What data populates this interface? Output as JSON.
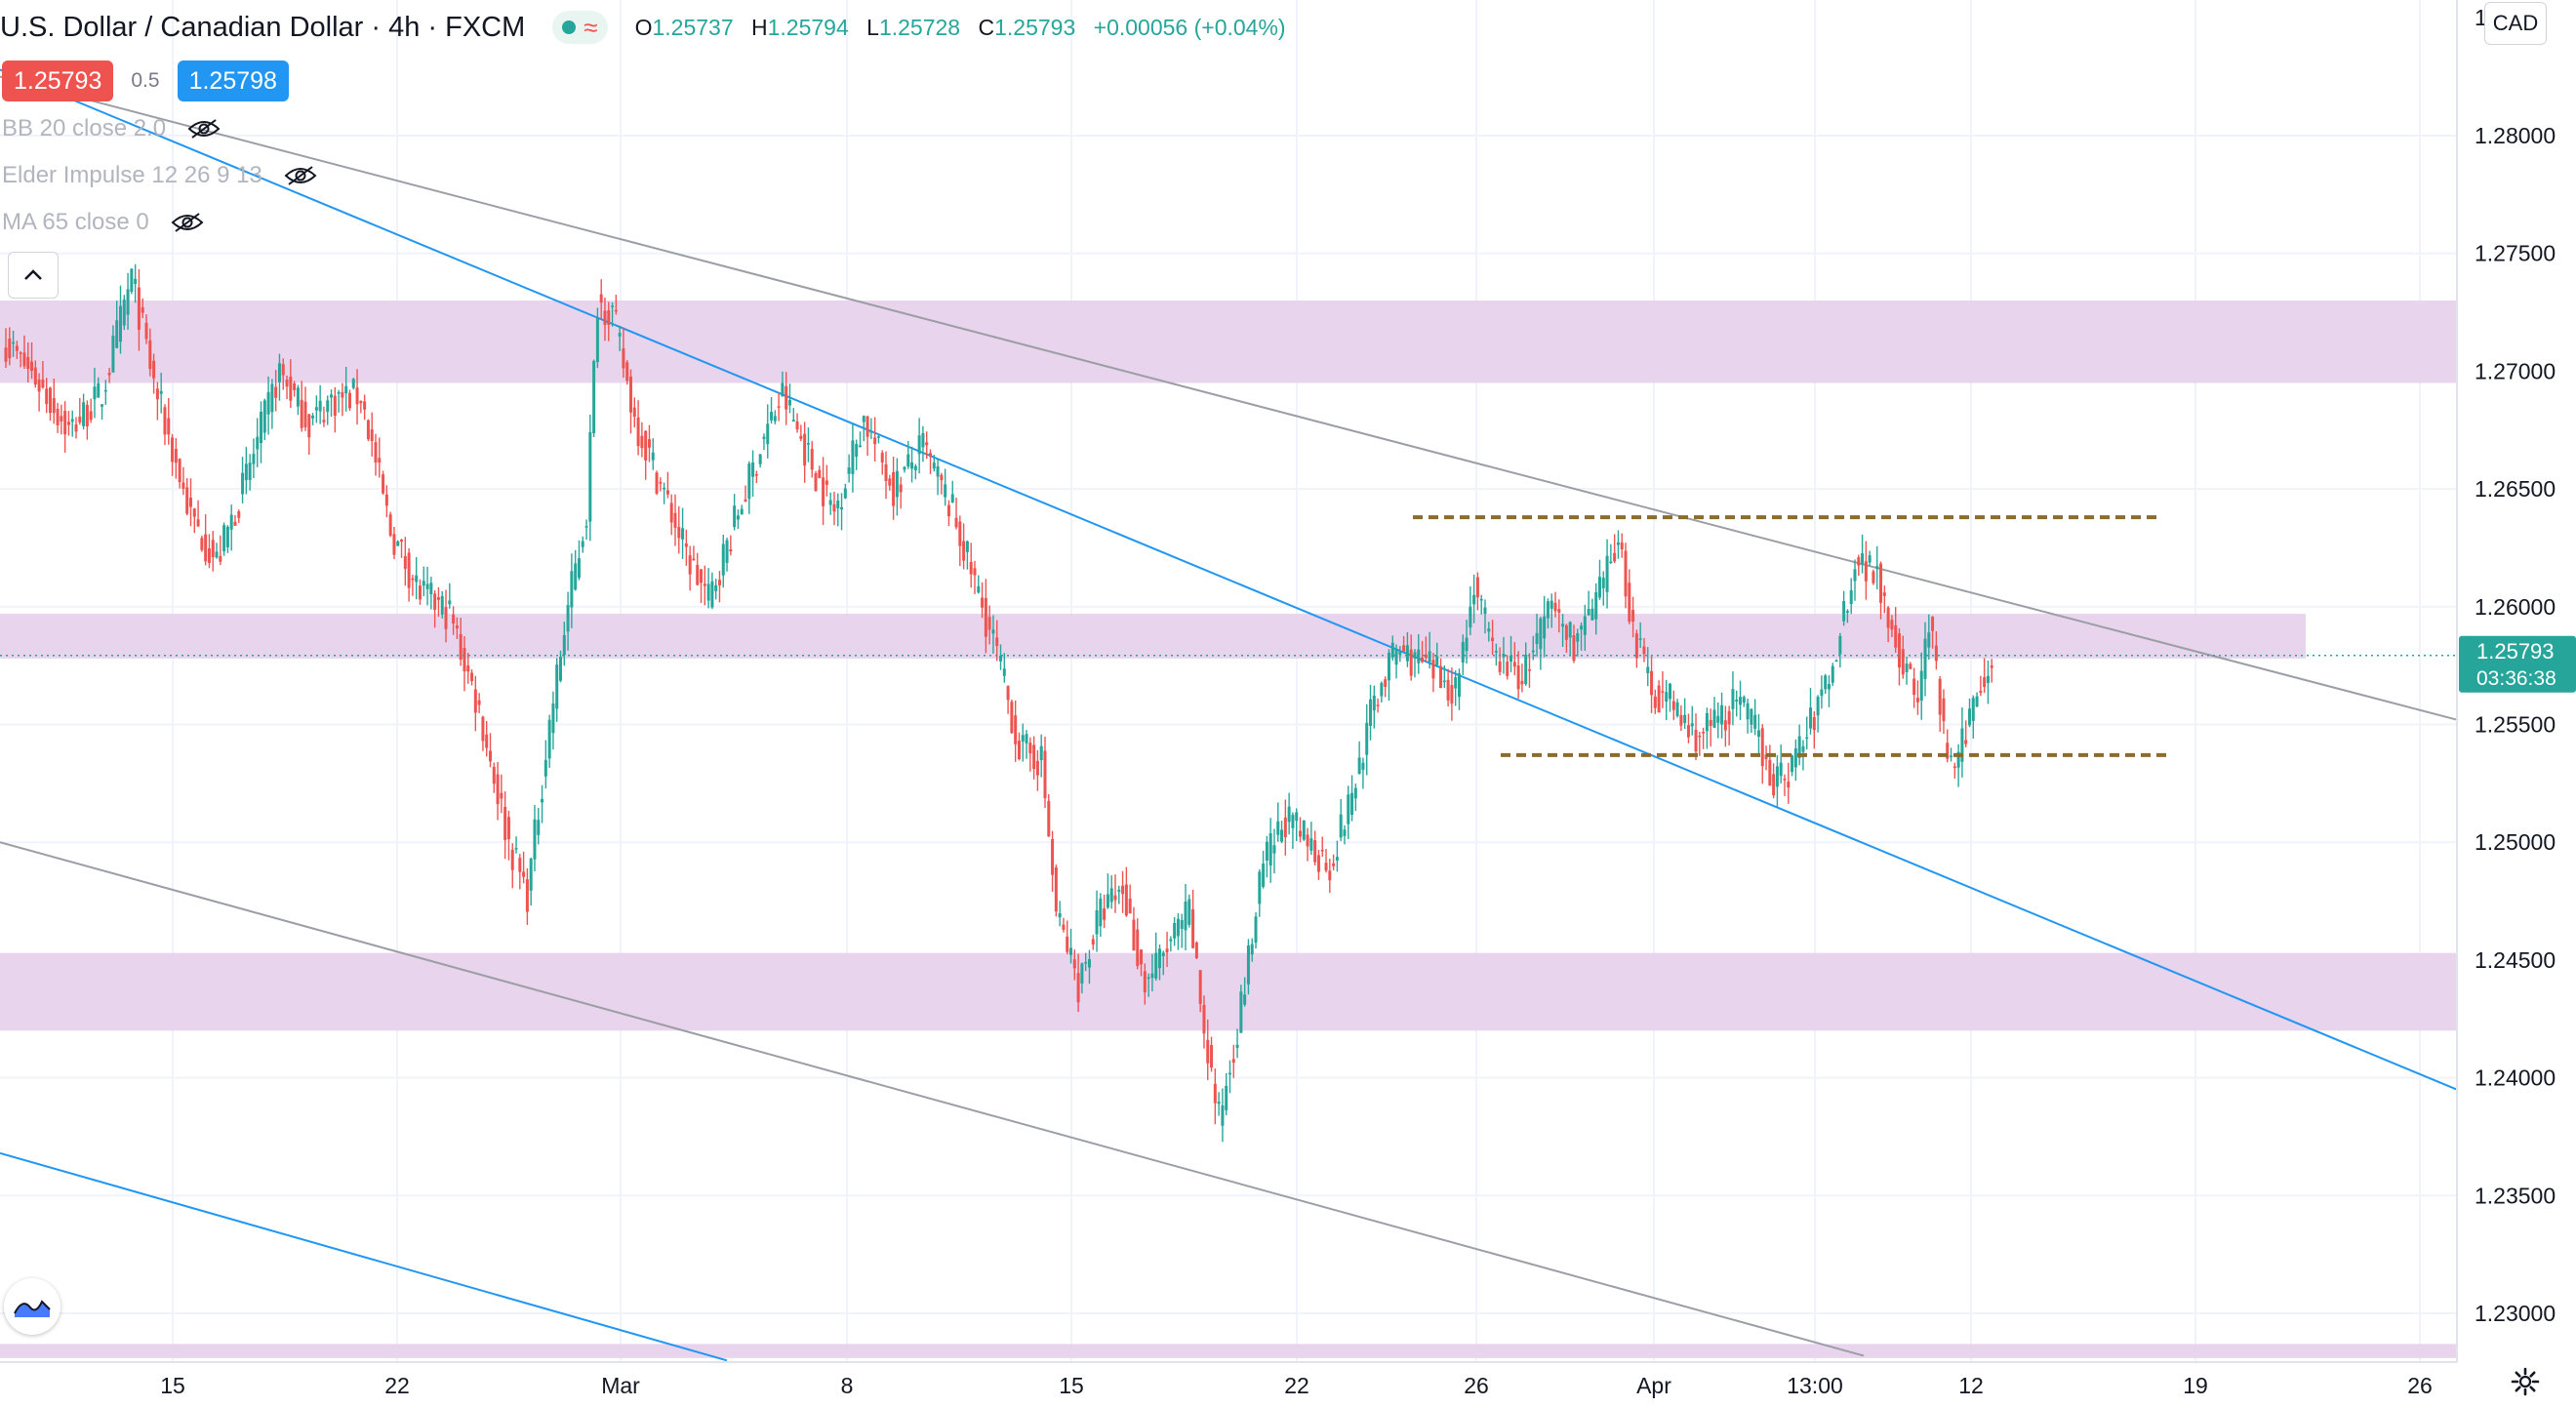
{
  "header": {
    "symbol": "U.S. Dollar / Canadian Dollar · 4h · FXCM",
    "ohlc": [
      {
        "k": "O",
        "v": "1.25737"
      },
      {
        "k": "H",
        "v": "1.25794"
      },
      {
        "k": "L",
        "v": "1.25728"
      },
      {
        "k": "C",
        "v": "1.25793"
      },
      {
        "k": "",
        "v": "+0.00056 (+0.04%)"
      }
    ]
  },
  "trade": {
    "sell": "1.25793",
    "spread": "0.5",
    "buy": "1.25798"
  },
  "indicators": [
    "BB 20 close 2.0",
    "Elder Impulse 12 26 9 13",
    "MA 65 close 0"
  ],
  "currency_button": "CAD",
  "icons": [
    "eye-hidden-icon",
    "chevron-up-icon",
    "tradingview-logo-icon",
    "gear-icon",
    "wave-icon"
  ],
  "colors": {
    "up": "#26a69a",
    "down": "#ef5350",
    "zone": "#e8d2ec",
    "channel_blue": "#2196f3",
    "channel_gray": "#9b9ea5",
    "level": "#8b6b2e",
    "last_price_bg": "#26a69a"
  },
  "chart_data": {
    "type": "candlestick",
    "title": "U.S. Dollar / Canadian Dollar · 4h · FXCM",
    "y_ticks": [
      "1.28000",
      "1.27500",
      "1.27000",
      "1.26500",
      "1.26000",
      "1.25500",
      "1.25000",
      "1.24500",
      "1.24000",
      "1.23500",
      "1.23000"
    ],
    "x_ticks": [
      "15",
      "22",
      "Mar",
      "8",
      "15",
      "22",
      "26",
      "Apr",
      "13:00",
      "12",
      "19",
      "26"
    ],
    "last_price": "1.25793",
    "countdown": "03:36:38",
    "partial_top_tick": "1.",
    "support_resistance_zones": [
      [
        1.2695,
        1.273
      ],
      [
        1.2578,
        1.2597
      ],
      [
        1.242,
        1.2453
      ],
      [
        1.2281,
        1.2287
      ]
    ],
    "dashed_levels": [
      1.2638,
      1.2537
    ],
    "close_path": [
      [
        0,
        1.2712
      ],
      [
        8,
        1.2697
      ],
      [
        17,
        1.2675
      ],
      [
        26,
        1.269
      ],
      [
        34,
        1.274
      ],
      [
        40,
        1.2695
      ],
      [
        50,
        1.2638
      ],
      [
        57,
        1.2619
      ],
      [
        64,
        1.265
      ],
      [
        74,
        1.27
      ],
      [
        82,
        1.2678
      ],
      [
        88,
        1.2688
      ],
      [
        96,
        1.269
      ],
      [
        104,
        1.2632
      ],
      [
        112,
        1.2606
      ],
      [
        120,
        1.2597
      ],
      [
        128,
        1.2556
      ],
      [
        136,
        1.25
      ],
      [
        141,
        1.2478
      ],
      [
        147,
        1.255
      ],
      [
        152,
        1.26
      ],
      [
        157,
        1.264
      ],
      [
        160,
        1.273
      ],
      [
        164,
        1.2725
      ],
      [
        170,
        1.268
      ],
      [
        178,
        1.2648
      ],
      [
        184,
        1.2622
      ],
      [
        190,
        1.2603
      ],
      [
        198,
        1.264
      ],
      [
        205,
        1.2672
      ],
      [
        210,
        1.269
      ],
      [
        218,
        1.266
      ],
      [
        224,
        1.264
      ],
      [
        232,
        1.268
      ],
      [
        240,
        1.265
      ],
      [
        248,
        1.2668
      ],
      [
        256,
        1.264
      ],
      [
        262,
        1.261
      ],
      [
        268,
        1.258
      ],
      [
        274,
        1.254
      ],
      [
        280,
        1.2535
      ],
      [
        284,
        1.247
      ],
      [
        290,
        1.244
      ],
      [
        296,
        1.247
      ],
      [
        302,
        1.248
      ],
      [
        308,
        1.244
      ],
      [
        316,
        1.246
      ],
      [
        320,
        1.247
      ],
      [
        324,
        1.242
      ],
      [
        328,
        1.2382
      ],
      [
        334,
        1.243
      ],
      [
        340,
        1.249
      ],
      [
        346,
        1.251
      ],
      [
        352,
        1.25
      ],
      [
        358,
        1.249
      ],
      [
        364,
        1.252
      ],
      [
        370,
        1.256
      ],
      [
        376,
        1.2582
      ],
      [
        384,
        1.2575
      ],
      [
        392,
        1.2565
      ],
      [
        397,
        1.261
      ],
      [
        402,
        1.258
      ],
      [
        410,
        1.257
      ],
      [
        418,
        1.26
      ],
      [
        424,
        1.2585
      ],
      [
        430,
        1.26
      ],
      [
        436,
        1.263
      ],
      [
        440,
        1.259
      ],
      [
        445,
        1.2565
      ],
      [
        450,
        1.256
      ],
      [
        456,
        1.2545
      ],
      [
        462,
        1.255
      ],
      [
        468,
        1.256
      ],
      [
        474,
        1.2545
      ],
      [
        478,
        1.2525
      ],
      [
        482,
        1.253
      ],
      [
        488,
        1.255
      ],
      [
        494,
        1.2575
      ],
      [
        500,
        1.262
      ],
      [
        506,
        1.2615
      ],
      [
        512,
        1.258
      ],
      [
        517,
        1.256
      ],
      [
        520,
        1.2595
      ],
      [
        524,
        1.2545
      ],
      [
        527,
        1.2528
      ],
      [
        532,
        1.256
      ],
      [
        537,
        1.2579
      ]
    ]
  }
}
